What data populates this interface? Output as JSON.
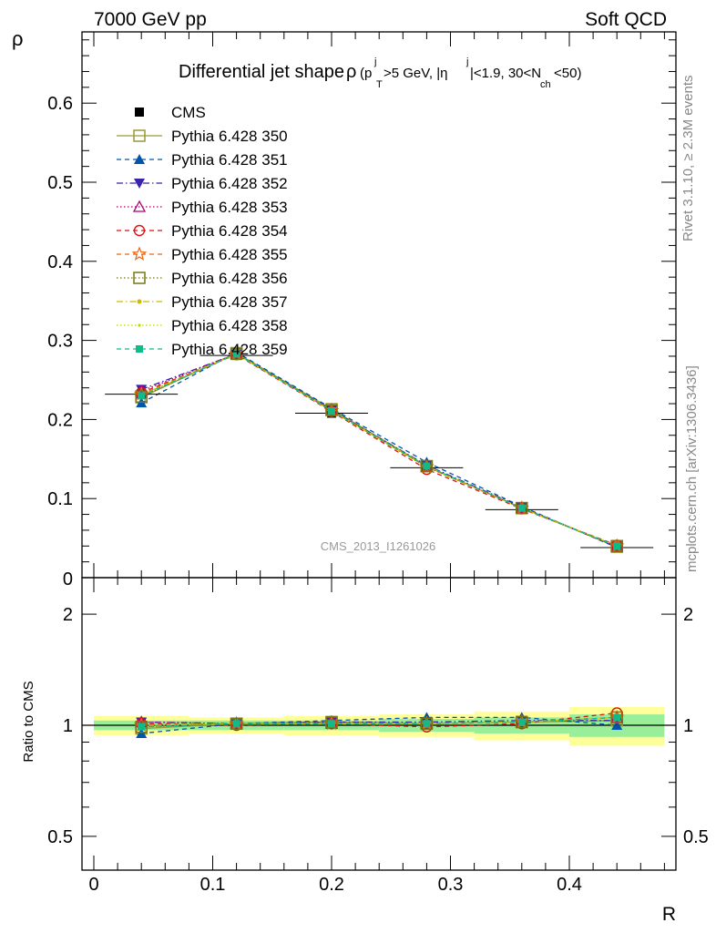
{
  "header": {
    "left": "7000 GeV pp",
    "right": "Soft QCD"
  },
  "side_labels": {
    "rivet": "Rivet 3.1.10, ≥ 2.3M events",
    "mcplots": "mcplots.cern.ch [arXiv:1306.3436]"
  },
  "watermark": "CMS_2013_I1261026",
  "chart_data": [
    {
      "type": "line",
      "title": "Differential jet shape ρ (p_T^j > 5 GeV, |η^j| < 1.9, 30 < N_ch < 50)",
      "title_main": "Differential jet shape",
      "ylabel": "ρ",
      "xlabel": "R",
      "xlim": [
        -0.02,
        0.48
      ],
      "ylim": [
        0,
        0.69
      ],
      "yticks": [
        0.1,
        0.2,
        0.3,
        0.4,
        0.5,
        0.6
      ],
      "x": [
        0.04,
        0.12,
        0.2,
        0.28,
        0.36,
        0.44
      ],
      "data": {
        "name": "CMS",
        "values": [
          0.232,
          0.281,
          0.208,
          0.139,
          0.086,
          0.038
        ],
        "errors": [
          0.005,
          0.005,
          0.005,
          0.004,
          0.003,
          0.003
        ],
        "color": "#000000"
      },
      "series": [
        {
          "name": "Pythia 6.428 350",
          "values": [
            0.228,
            0.284,
            0.213,
            0.141,
            0.088,
            0.039
          ],
          "color": "#999933",
          "marker": "square-open",
          "dash": "solid"
        },
        {
          "name": "Pythia 6.428 351",
          "values": [
            0.221,
            0.285,
            0.214,
            0.146,
            0.09,
            0.038
          ],
          "color": "#0055aa",
          "marker": "triangle-up",
          "dash": "dashed"
        },
        {
          "name": "Pythia 6.428 352",
          "values": [
            0.238,
            0.283,
            0.212,
            0.142,
            0.089,
            0.039
          ],
          "color": "#3a22aa",
          "marker": "triangle-down",
          "dash": "dashdot"
        },
        {
          "name": "Pythia 6.428 353",
          "values": [
            0.236,
            0.283,
            0.211,
            0.14,
            0.088,
            0.04
          ],
          "color": "#aa0077",
          "marker": "triangle-open",
          "dash": "dotted"
        },
        {
          "name": "Pythia 6.428 354",
          "values": [
            0.234,
            0.282,
            0.21,
            0.137,
            0.087,
            0.041
          ],
          "color": "#dd1111",
          "marker": "circle-open",
          "dash": "dashed"
        },
        {
          "name": "Pythia 6.428 355",
          "values": [
            0.232,
            0.283,
            0.211,
            0.14,
            0.088,
            0.04
          ],
          "color": "#ee6611",
          "marker": "star-open",
          "dash": "dashed"
        },
        {
          "name": "Pythia 6.428 356",
          "values": [
            0.229,
            0.283,
            0.212,
            0.141,
            0.088,
            0.04
          ],
          "color": "#777711",
          "marker": "square-open",
          "dash": "dotted"
        },
        {
          "name": "Pythia 6.428 357",
          "values": [
            0.231,
            0.283,
            0.211,
            0.141,
            0.088,
            0.04
          ],
          "color": "#ccbb00",
          "marker": "dot",
          "dash": "dashdot"
        },
        {
          "name": "Pythia 6.428 358",
          "values": [
            0.231,
            0.283,
            0.211,
            0.14,
            0.088,
            0.04
          ],
          "color": "#bbdd00",
          "marker": "dot-small",
          "dash": "dotted"
        },
        {
          "name": "Pythia 6.428 359",
          "values": [
            0.23,
            0.283,
            0.211,
            0.141,
            0.088,
            0.04
          ],
          "color": "#11bb88",
          "marker": "square-filled",
          "dash": "dashed"
        }
      ]
    },
    {
      "type": "line",
      "ylabel": "Ratio to CMS",
      "xlabel": "R",
      "scale": "log",
      "ylim": [
        0.4,
        2.4
      ],
      "yticks": [
        0.5,
        1,
        2
      ],
      "xticks": [
        0,
        0.1,
        0.2,
        0.3,
        0.4
      ],
      "xlim": [
        -0.02,
        0.48
      ],
      "bin_edges": [
        0.0,
        0.08,
        0.16,
        0.24,
        0.32,
        0.4,
        0.48
      ],
      "band_inner": [
        0.03,
        0.03,
        0.03,
        0.04,
        0.05,
        0.07
      ],
      "band_outer": [
        0.06,
        0.05,
        0.06,
        0.07,
        0.09,
        0.12
      ],
      "band_inner_color": "#99ee99",
      "band_outer_color": "#ffff99",
      "ratios": [
        [
          0.98,
          1.01,
          1.02,
          1.01,
          1.02,
          1.03
        ],
        [
          0.95,
          1.01,
          1.03,
          1.05,
          1.05,
          1.0
        ],
        [
          1.02,
          1.01,
          1.02,
          1.02,
          1.03,
          1.03
        ],
        [
          1.02,
          1.01,
          1.01,
          1.01,
          1.02,
          1.05
        ],
        [
          1.01,
          1.0,
          1.01,
          0.99,
          1.01,
          1.08
        ],
        [
          1.0,
          1.01,
          1.01,
          1.01,
          1.02,
          1.05
        ],
        [
          0.99,
          1.01,
          1.02,
          1.01,
          1.02,
          1.05
        ],
        [
          1.0,
          1.01,
          1.01,
          1.01,
          1.02,
          1.05
        ],
        [
          1.0,
          1.01,
          1.01,
          1.01,
          1.02,
          1.05
        ],
        [
          0.99,
          1.01,
          1.01,
          1.01,
          1.02,
          1.05
        ]
      ]
    }
  ]
}
